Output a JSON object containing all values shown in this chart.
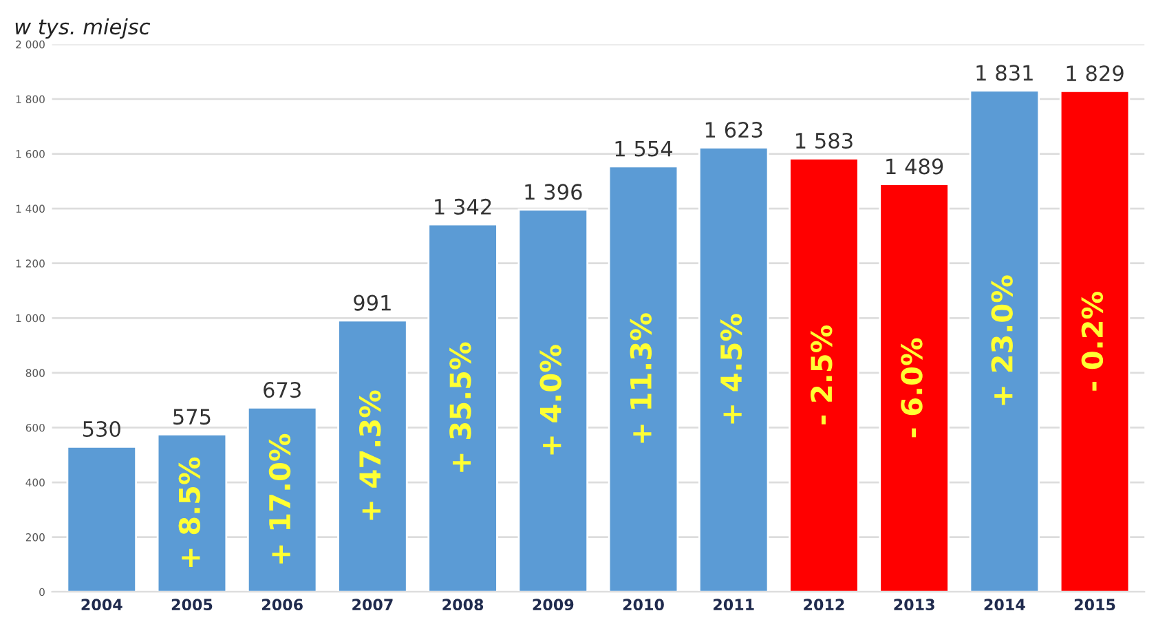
{
  "chart_data": {
    "type": "bar",
    "title": "w tys. miejsc",
    "categories": [
      "2004",
      "2005",
      "2006",
      "2007",
      "2008",
      "2009",
      "2010",
      "2011",
      "2012",
      "2013",
      "2014",
      "2015"
    ],
    "values": [
      530,
      575,
      673,
      991,
      1342,
      1396,
      1554,
      1623,
      1583,
      1489,
      1831,
      1829
    ],
    "colors": [
      "#5b9bd5",
      "#5b9bd5",
      "#5b9bd5",
      "#5b9bd5",
      "#5b9bd5",
      "#5b9bd5",
      "#5b9bd5",
      "#5b9bd5",
      "#ff0000",
      "#ff0000",
      "#5b9bd5",
      "#ff0000"
    ],
    "value_labels": [
      "530",
      "575",
      "673",
      "991",
      "1 342",
      "1 396",
      "1 554",
      "1 623",
      "1 583",
      "1 489",
      "1 831",
      "1 829"
    ],
    "annotations": [
      "+ 8.5%",
      "+ 17.0%",
      "+ 47.3%",
      "+ 35.5%",
      "+ 4.0%",
      "+ 11.3%",
      "+ 4.5%",
      "- 2.5%",
      "- 6.0%",
      "+ 23.0%",
      "- 0.2%"
    ],
    "ylim": [
      0,
      2000
    ],
    "yticks": [
      0,
      200,
      400,
      600,
      800,
      {
        "value": 1000,
        "label": "1 000"
      },
      {
        "value": 1200,
        "label": "1 200"
      },
      {
        "value": 1400,
        "label": "1 400"
      },
      {
        "value": 1600,
        "label": "1 600"
      },
      {
        "value": 1800,
        "label": "1 800"
      },
      {
        "value": 2000,
        "label": "2 000"
      }
    ],
    "grid": "y",
    "legend": false
  }
}
